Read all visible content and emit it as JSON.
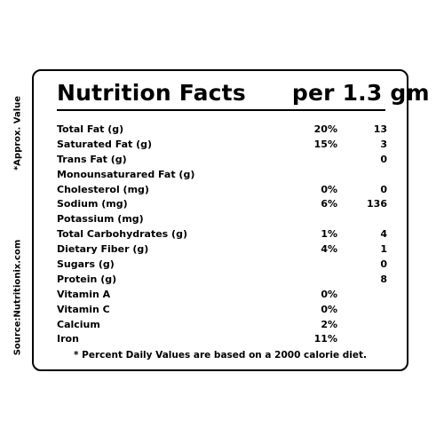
{
  "side_notes": {
    "approx": "*Approx. Value",
    "source": "Source:Nutritionix.com"
  },
  "label": {
    "title": "Nutrition Facts",
    "serving": "per 1.3 gm",
    "rows": [
      {
        "name": "Total Fat (g)",
        "pct": "20%",
        "amount": "13"
      },
      {
        "name": "Saturated Fat (g)",
        "pct": "15%",
        "amount": "3"
      },
      {
        "name": "Trans Fat (g)",
        "pct": "",
        "amount": "0"
      },
      {
        "name": "Monounsaturared Fat (g)",
        "pct": "",
        "amount": ""
      },
      {
        "name": "Cholesterol (mg)",
        "pct": "0%",
        "amount": "0"
      },
      {
        "name": "Sodium (mg)",
        "pct": "6%",
        "amount": "136"
      },
      {
        "name": "Potassium (mg)",
        "pct": "",
        "amount": ""
      },
      {
        "name": "Total Carbohydrates (g)",
        "pct": "1%",
        "amount": "4"
      },
      {
        "name": "Dietary Fiber (g)",
        "pct": "4%",
        "amount": "1"
      },
      {
        "name": "Sugars (g)",
        "pct": "",
        "amount": "0"
      },
      {
        "name": "Protein (g)",
        "pct": "",
        "amount": "8"
      },
      {
        "name": "Vitamin A",
        "pct": "0%",
        "amount": ""
      },
      {
        "name": "Vitamin C",
        "pct": "0%",
        "amount": ""
      },
      {
        "name": "Calcium",
        "pct": "2%",
        "amount": ""
      },
      {
        "name": "Iron",
        "pct": "11%",
        "amount": ""
      }
    ],
    "footnote": "* Percent Daily Values are based on a 2000 calorie diet."
  }
}
